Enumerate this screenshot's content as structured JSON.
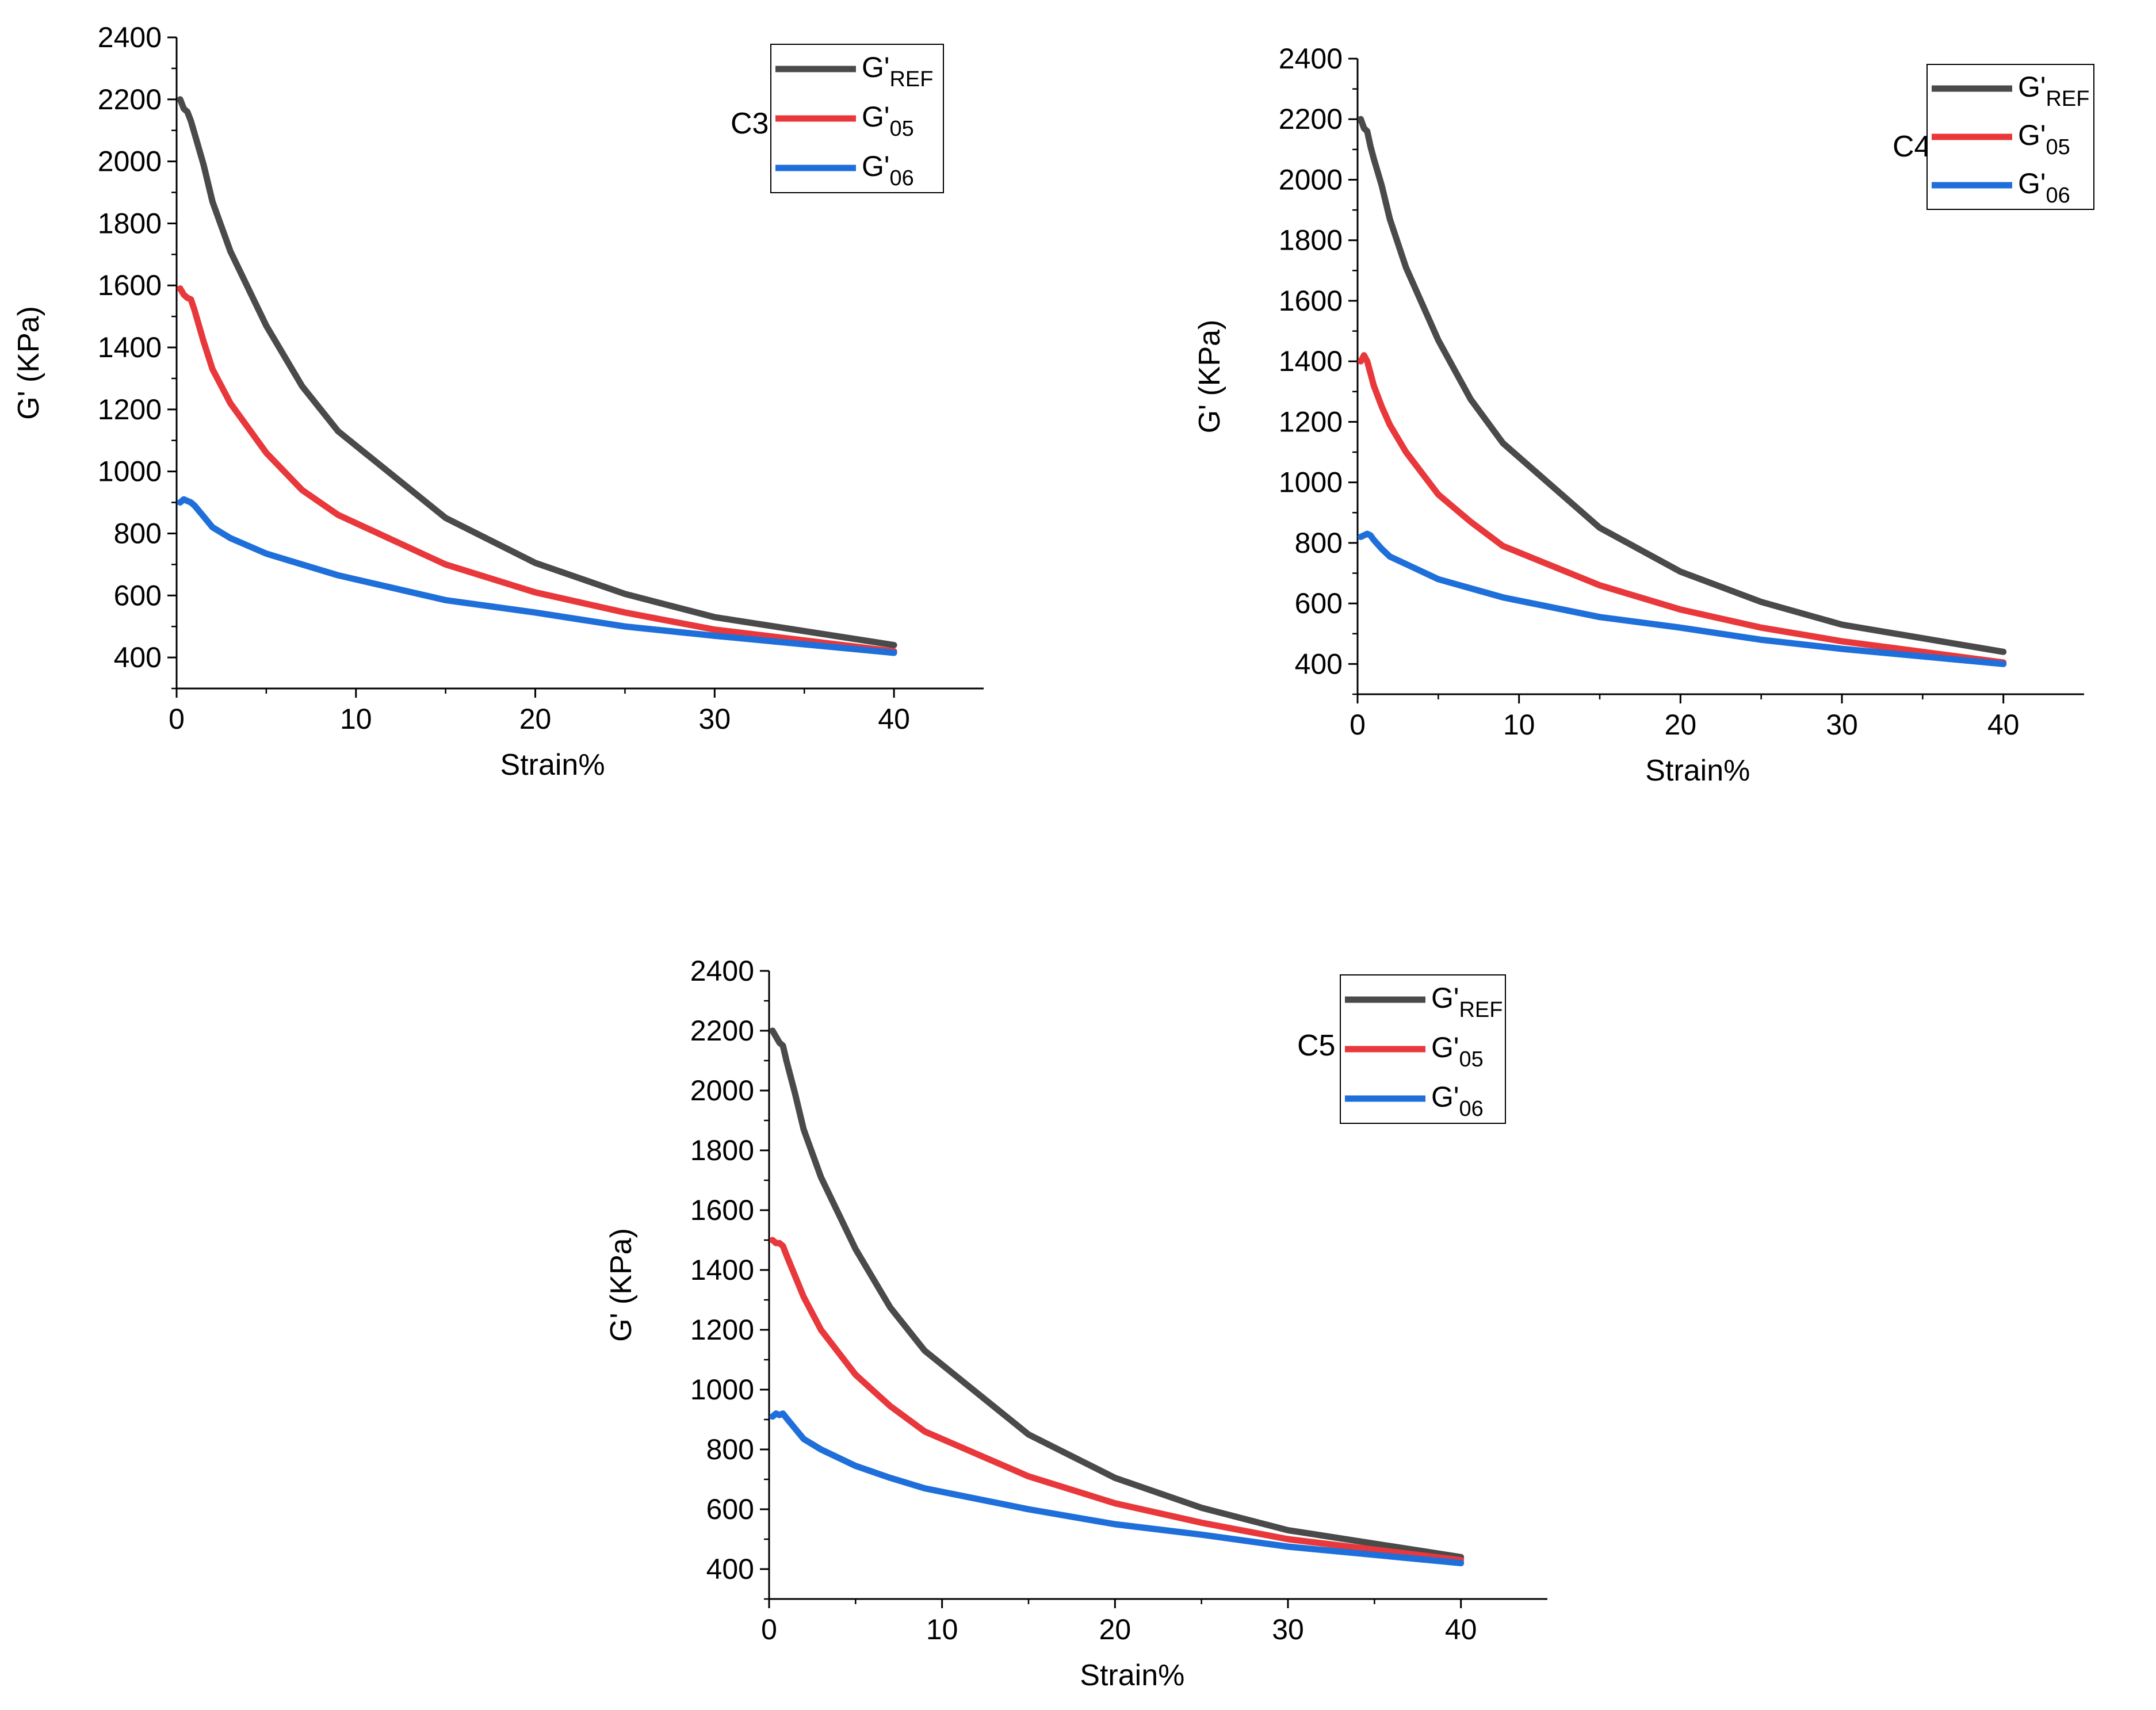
{
  "series_style": [
    {
      "color": "#4a4a4a"
    },
    {
      "color": "#e8383b"
    },
    {
      "color": "#1f6fdb"
    }
  ],
  "chart_data": [
    {
      "type": "line",
      "panel_label": "C3",
      "xlabel": "Strain%",
      "ylabel": "G' (KPa)",
      "xlim": [
        0,
        45
      ],
      "ylim": [
        300,
        2400
      ],
      "xticks": [
        0,
        10,
        20,
        30,
        40
      ],
      "yticks": [
        400,
        600,
        800,
        1000,
        1200,
        1400,
        1600,
        1800,
        2000,
        2200,
        2400
      ],
      "legend": {
        "position": "top-right"
      },
      "series": [
        {
          "name": "G'REF",
          "base": "G'",
          "sub": "REF",
          "x": [
            0.2,
            0.4,
            0.6,
            0.8,
            1,
            1.5,
            2,
            3,
            5,
            7,
            9,
            15,
            20,
            25,
            30,
            40
          ],
          "y": [
            2200,
            2170,
            2160,
            2130,
            2090,
            1990,
            1870,
            1710,
            1470,
            1275,
            1130,
            850,
            705,
            605,
            530,
            440
          ]
        },
        {
          "name": "G'05",
          "base": "G'",
          "sub": "05",
          "x": [
            0.2,
            0.4,
            0.6,
            0.8,
            1,
            1.5,
            2,
            3,
            5,
            7,
            9,
            15,
            20,
            25,
            30,
            40
          ],
          "y": [
            1590,
            1570,
            1560,
            1555,
            1520,
            1420,
            1330,
            1220,
            1060,
            940,
            860,
            700,
            610,
            545,
            490,
            420
          ]
        },
        {
          "name": "G'06",
          "base": "G'",
          "sub": "06",
          "x": [
            0.2,
            0.4,
            0.6,
            0.8,
            1,
            1.5,
            2,
            3,
            5,
            7,
            9,
            15,
            20,
            25,
            30,
            40
          ],
          "y": [
            900,
            910,
            905,
            900,
            890,
            855,
            820,
            785,
            735,
            700,
            665,
            585,
            545,
            500,
            470,
            415
          ]
        }
      ]
    },
    {
      "type": "line",
      "panel_label": "C4",
      "xlabel": "Strain%",
      "ylabel": "G' (KPa)",
      "xlim": [
        0,
        45
      ],
      "ylim": [
        300,
        2400
      ],
      "xticks": [
        0,
        10,
        20,
        30,
        40
      ],
      "yticks": [
        400,
        600,
        800,
        1000,
        1200,
        1400,
        1600,
        1800,
        2000,
        2200,
        2400
      ],
      "legend": {
        "position": "top-right"
      },
      "series": [
        {
          "name": "G'REF",
          "base": "G'",
          "sub": "REF",
          "x": [
            0.2,
            0.4,
            0.6,
            0.8,
            1,
            1.5,
            2,
            3,
            5,
            7,
            9,
            15,
            20,
            25,
            30,
            40
          ],
          "y": [
            2200,
            2170,
            2160,
            2110,
            2070,
            1980,
            1870,
            1710,
            1470,
            1275,
            1130,
            850,
            705,
            605,
            530,
            440
          ]
        },
        {
          "name": "G'05",
          "base": "G'",
          "sub": "05",
          "x": [
            0.2,
            0.4,
            0.6,
            0.8,
            1,
            1.5,
            2,
            3,
            5,
            7,
            9,
            15,
            20,
            25,
            30,
            40
          ],
          "y": [
            1400,
            1420,
            1400,
            1360,
            1320,
            1250,
            1190,
            1100,
            960,
            870,
            790,
            660,
            580,
            520,
            475,
            405
          ]
        },
        {
          "name": "G'06",
          "base": "G'",
          "sub": "06",
          "x": [
            0.2,
            0.4,
            0.6,
            0.8,
            1,
            1.5,
            2,
            3,
            5,
            7,
            9,
            15,
            20,
            25,
            30,
            40
          ],
          "y": [
            820,
            825,
            830,
            825,
            810,
            780,
            755,
            730,
            680,
            650,
            620,
            555,
            520,
            480,
            450,
            400
          ]
        }
      ]
    },
    {
      "type": "line",
      "panel_label": "C5",
      "xlabel": "Strain%",
      "ylabel": "G' (KPa)",
      "xlim": [
        0,
        45
      ],
      "ylim": [
        300,
        2400
      ],
      "xticks": [
        0,
        10,
        20,
        30,
        40
      ],
      "yticks": [
        400,
        600,
        800,
        1000,
        1200,
        1400,
        1600,
        1800,
        2000,
        2200,
        2400
      ],
      "legend": {
        "position": "top-right"
      },
      "series": [
        {
          "name": "G'REF",
          "base": "G'",
          "sub": "REF",
          "x": [
            0.2,
            0.4,
            0.6,
            0.8,
            1,
            1.5,
            2,
            3,
            5,
            7,
            9,
            15,
            20,
            25,
            30,
            40
          ],
          "y": [
            2200,
            2180,
            2160,
            2150,
            2100,
            1990,
            1870,
            1710,
            1470,
            1275,
            1130,
            850,
            705,
            605,
            530,
            440
          ]
        },
        {
          "name": "G'05",
          "base": "G'",
          "sub": "05",
          "x": [
            0.2,
            0.4,
            0.6,
            0.8,
            1,
            1.5,
            2,
            3,
            5,
            7,
            9,
            15,
            20,
            25,
            30,
            40
          ],
          "y": [
            1500,
            1490,
            1490,
            1480,
            1450,
            1380,
            1310,
            1200,
            1050,
            945,
            860,
            710,
            620,
            555,
            500,
            430
          ]
        },
        {
          "name": "G'06",
          "base": "G'",
          "sub": "06",
          "x": [
            0.2,
            0.4,
            0.6,
            0.8,
            1,
            1.5,
            2,
            3,
            5,
            7,
            9,
            15,
            20,
            25,
            30,
            40
          ],
          "y": [
            910,
            920,
            915,
            920,
            905,
            870,
            835,
            800,
            745,
            705,
            670,
            600,
            550,
            515,
            475,
            420
          ]
        }
      ]
    }
  ]
}
